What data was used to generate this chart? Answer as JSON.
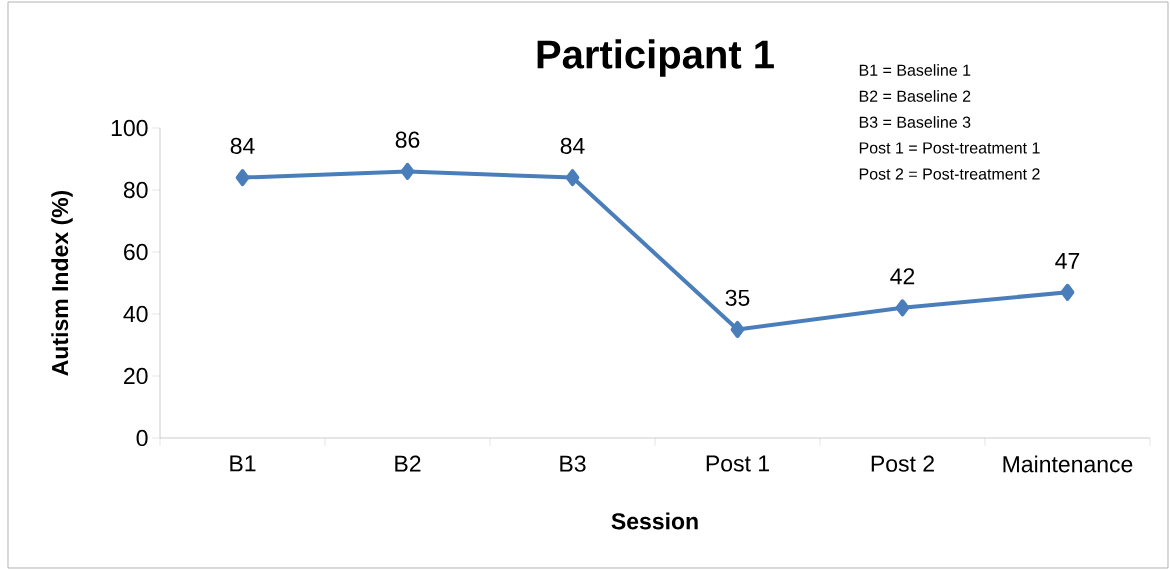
{
  "chart_data": {
    "type": "line",
    "title": "Participant 1",
    "xlabel": "Session",
    "ylabel": "Autism Index (%)",
    "categories": [
      "B1",
      "B2",
      "B3",
      "Post 1",
      "Post 2",
      "Maintenance"
    ],
    "series": [
      {
        "color": "#4a7ebb",
        "values": [
          84,
          86,
          84,
          35,
          42,
          47
        ]
      }
    ],
    "ylim": [
      0,
      100
    ],
    "yticks": [
      0,
      20,
      40,
      60,
      80,
      100
    ],
    "data_labels": true,
    "marker": "diamond",
    "grid": false,
    "annotations": [
      "B1 = Baseline 1",
      "B2 = Baseline 2",
      "B3 = Baseline 3",
      "Post 1 = Post-treatment 1",
      "Post 2 = Post-treatment 2"
    ]
  }
}
